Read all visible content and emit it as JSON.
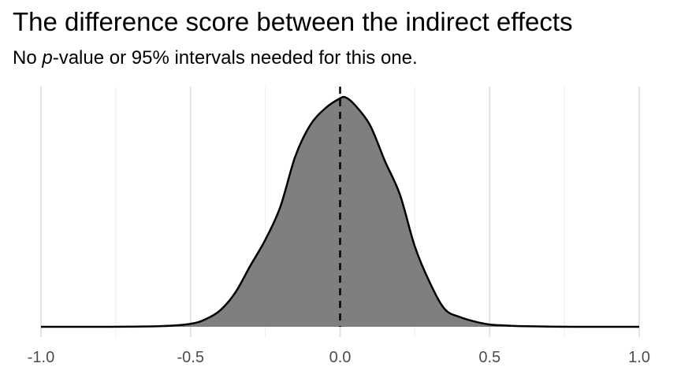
{
  "chart_data": {
    "type": "area",
    "title": "The difference score between the indirect effects",
    "subtitle": {
      "prefix": "No ",
      "italic": "p",
      "suffix": "-value or 95% intervals needed for this one."
    },
    "xlabel": "",
    "ylabel": "",
    "xlim": [
      -1.0,
      1.0
    ],
    "x_ticks": [
      -1.0,
      -0.5,
      0.0,
      0.5,
      1.0
    ],
    "x_tick_labels": [
      "-1.0",
      "-0.5",
      "0.0",
      "0.5",
      "1.0"
    ],
    "x_minor_gridlines": [
      -0.75,
      -0.25,
      0.25,
      0.75
    ],
    "y_axis_shown": false,
    "grid": "vertical",
    "reference_line": {
      "x": 0.0,
      "style": "dashed"
    },
    "colors": {
      "fill": "#7f7f7f",
      "line": "#000000",
      "major_grid": "#e3e3e3",
      "minor_grid": "#f0f0f0",
      "tick_text": "#4d4d4d"
    },
    "series": [
      {
        "x": [
          -1.0,
          -0.8,
          -0.6,
          -0.5,
          -0.45,
          -0.4,
          -0.35,
          -0.3,
          -0.25,
          -0.2,
          -0.15,
          -0.1,
          -0.05,
          0.0,
          0.02,
          0.05,
          0.1,
          0.15,
          0.2,
          0.25,
          0.3,
          0.35,
          0.4,
          0.45,
          0.5,
          0.55,
          0.6,
          0.7,
          0.8,
          1.0
        ],
        "y": [
          0.0,
          0.0,
          0.003,
          0.013,
          0.033,
          0.073,
          0.15,
          0.267,
          0.38,
          0.523,
          0.743,
          0.88,
          0.953,
          0.997,
          1.0,
          0.967,
          0.88,
          0.723,
          0.577,
          0.35,
          0.193,
          0.077,
          0.043,
          0.023,
          0.01,
          0.006,
          0.003,
          0.001,
          0.0,
          0.0
        ]
      }
    ]
  }
}
